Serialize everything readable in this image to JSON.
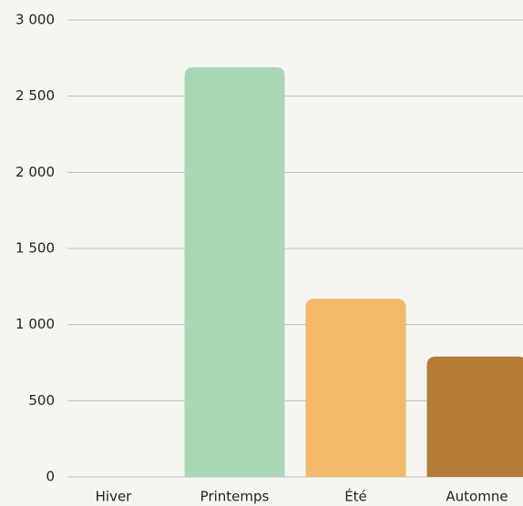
{
  "chart_data": {
    "type": "bar",
    "categories": [
      "Hiver",
      "Printemps",
      "Été",
      "Automne"
    ],
    "values": [
      0,
      2690,
      1170,
      790
    ],
    "colors": [
      "#8fb8d6",
      "#a8d7b5",
      "#f2b96b",
      "#b57c37"
    ],
    "ylim": [
      0,
      3000
    ],
    "yticks": [
      0,
      500,
      {
        "value": 1000,
        "label": "1 000"
      },
      {
        "value": 1500,
        "label": "1 500"
      },
      {
        "value": 2000,
        "label": "2 000"
      },
      {
        "value": 2500,
        "label": "2 500"
      },
      {
        "value": 3000,
        "label": "3 000"
      }
    ],
    "grid": true
  }
}
